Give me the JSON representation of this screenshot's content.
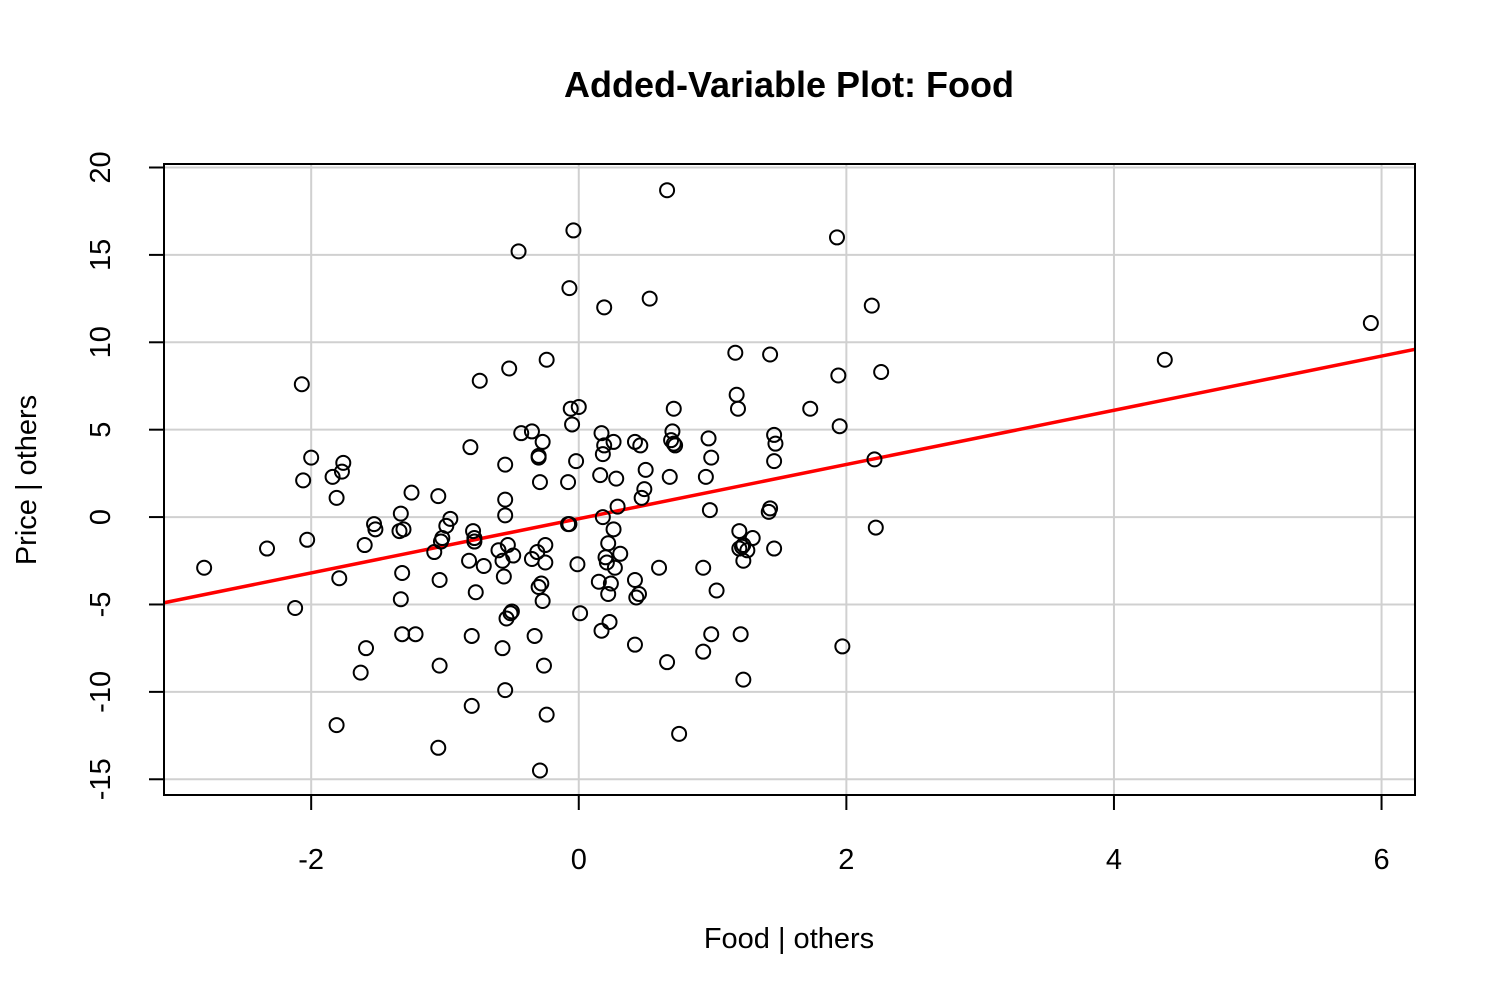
{
  "chart_data": {
    "type": "scatter",
    "title": "Added-Variable Plot: Food",
    "xlabel": "Food | others",
    "ylabel": "Price  | others",
    "xlim": [
      -3.1,
      6.25
    ],
    "ylim": [
      -15.9,
      20.2
    ],
    "xticks": [
      -2,
      0,
      2,
      4,
      6
    ],
    "yticks": [
      -15,
      -10,
      -5,
      0,
      5,
      10,
      15,
      20
    ],
    "grid": true,
    "colors": {
      "points": "#000000",
      "fit_line": "#ff0000",
      "grid": "#d0d0d0"
    },
    "fit_line": {
      "x": [
        -3.1,
        6.25
      ],
      "y": [
        -4.9,
        9.6
      ]
    },
    "points": [
      {
        "x": -2.8,
        "y": -2.9
      },
      {
        "x": -2.33,
        "y": -1.8
      },
      {
        "x": -2.12,
        "y": -5.2
      },
      {
        "x": -2.07,
        "y": 7.6
      },
      {
        "x": -2.06,
        "y": 2.1
      },
      {
        "x": -2.03,
        "y": -1.3
      },
      {
        "x": -2.0,
        "y": 3.4
      },
      {
        "x": -1.84,
        "y": 2.3
      },
      {
        "x": -1.81,
        "y": 1.1
      },
      {
        "x": -1.79,
        "y": -3.5
      },
      {
        "x": -1.81,
        "y": -11.9
      },
      {
        "x": -1.77,
        "y": 2.6
      },
      {
        "x": -1.76,
        "y": 3.1
      },
      {
        "x": -1.63,
        "y": -8.9
      },
      {
        "x": -1.6,
        "y": -1.6
      },
      {
        "x": -1.59,
        "y": -7.5
      },
      {
        "x": -1.53,
        "y": -0.4
      },
      {
        "x": -1.52,
        "y": -0.7
      },
      {
        "x": -1.33,
        "y": 0.2
      },
      {
        "x": -1.33,
        "y": -4.7
      },
      {
        "x": -1.32,
        "y": -3.2
      },
      {
        "x": -1.32,
        "y": -6.7
      },
      {
        "x": -1.31,
        "y": -0.7
      },
      {
        "x": -1.34,
        "y": -0.8
      },
      {
        "x": -1.25,
        "y": 1.4
      },
      {
        "x": -1.22,
        "y": -6.7
      },
      {
        "x": -1.08,
        "y": -2.0
      },
      {
        "x": -1.05,
        "y": 1.2
      },
      {
        "x": -1.04,
        "y": -3.6
      },
      {
        "x": -1.04,
        "y": -8.5
      },
      {
        "x": -1.05,
        "y": -13.2
      },
      {
        "x": -1.03,
        "y": -1.4
      },
      {
        "x": -1.02,
        "y": -1.2
      },
      {
        "x": -0.99,
        "y": -0.5
      },
      {
        "x": -0.96,
        "y": -0.1
      },
      {
        "x": -0.82,
        "y": -2.5
      },
      {
        "x": -0.81,
        "y": 4.0
      },
      {
        "x": -0.8,
        "y": -10.8
      },
      {
        "x": -0.8,
        "y": -6.8
      },
      {
        "x": -0.79,
        "y": -0.8
      },
      {
        "x": -0.78,
        "y": -1.2
      },
      {
        "x": -0.78,
        "y": -1.4
      },
      {
        "x": -0.77,
        "y": -4.3
      },
      {
        "x": -0.74,
        "y": 7.8
      },
      {
        "x": -0.71,
        "y": -2.8
      },
      {
        "x": -0.6,
        "y": -1.9
      },
      {
        "x": -0.57,
        "y": -7.5
      },
      {
        "x": -0.56,
        "y": -3.4
      },
      {
        "x": -0.57,
        "y": -2.5
      },
      {
        "x": -0.55,
        "y": 3.0
      },
      {
        "x": -0.55,
        "y": 1.0
      },
      {
        "x": -0.55,
        "y": 0.1
      },
      {
        "x": -0.55,
        "y": -9.9
      },
      {
        "x": -0.53,
        "y": -1.6
      },
      {
        "x": -0.54,
        "y": -5.8
      },
      {
        "x": -0.52,
        "y": 8.5
      },
      {
        "x": -0.51,
        "y": -5.5
      },
      {
        "x": -0.5,
        "y": -5.4
      },
      {
        "x": -0.49,
        "y": -2.2
      },
      {
        "x": -0.45,
        "y": 15.2
      },
      {
        "x": -0.43,
        "y": 4.8
      },
      {
        "x": -0.35,
        "y": 4.9
      },
      {
        "x": -0.35,
        "y": -2.4
      },
      {
        "x": -0.33,
        "y": -6.8
      },
      {
        "x": -0.31,
        "y": -2.0
      },
      {
        "x": -0.29,
        "y": -14.5
      },
      {
        "x": -0.3,
        "y": 3.5
      },
      {
        "x": -0.3,
        "y": 3.4
      },
      {
        "x": -0.3,
        "y": -4.0
      },
      {
        "x": -0.29,
        "y": 2.0
      },
      {
        "x": -0.28,
        "y": -3.8
      },
      {
        "x": -0.27,
        "y": 4.3
      },
      {
        "x": -0.27,
        "y": -4.8
      },
      {
        "x": -0.26,
        "y": -8.5
      },
      {
        "x": -0.25,
        "y": -1.6
      },
      {
        "x": -0.25,
        "y": -2.6
      },
      {
        "x": -0.24,
        "y": 9.0
      },
      {
        "x": -0.24,
        "y": -11.3
      },
      {
        "x": -0.08,
        "y": 2.0
      },
      {
        "x": -0.08,
        "y": -0.4
      },
      {
        "x": -0.07,
        "y": -0.4
      },
      {
        "x": -0.07,
        "y": 13.1
      },
      {
        "x": -0.06,
        "y": 6.2
      },
      {
        "x": -0.05,
        "y": 5.3
      },
      {
        "x": -0.04,
        "y": 16.4
      },
      {
        "x": -0.02,
        "y": 3.2
      },
      {
        "x": -0.01,
        "y": -2.7
      },
      {
        "x": 0.0,
        "y": 6.3
      },
      {
        "x": 0.01,
        "y": -5.5
      },
      {
        "x": 0.15,
        "y": -3.7
      },
      {
        "x": 0.16,
        "y": 2.4
      },
      {
        "x": 0.17,
        "y": 4.8
      },
      {
        "x": 0.17,
        "y": -6.5
      },
      {
        "x": 0.18,
        "y": 3.6
      },
      {
        "x": 0.18,
        "y": 0.0
      },
      {
        "x": 0.19,
        "y": 4.1
      },
      {
        "x": 0.19,
        "y": 12.0
      },
      {
        "x": 0.2,
        "y": -2.3
      },
      {
        "x": 0.21,
        "y": -2.6
      },
      {
        "x": 0.22,
        "y": -1.5
      },
      {
        "x": 0.22,
        "y": -4.4
      },
      {
        "x": 0.23,
        "y": -6.0
      },
      {
        "x": 0.24,
        "y": -3.8
      },
      {
        "x": 0.26,
        "y": 4.3
      },
      {
        "x": 0.26,
        "y": -0.7
      },
      {
        "x": 0.27,
        "y": -2.9
      },
      {
        "x": 0.28,
        "y": 2.2
      },
      {
        "x": 0.29,
        "y": 0.6
      },
      {
        "x": 0.31,
        "y": -2.1
      },
      {
        "x": 0.42,
        "y": 4.3
      },
      {
        "x": 0.42,
        "y": -3.6
      },
      {
        "x": 0.42,
        "y": -7.3
      },
      {
        "x": 0.43,
        "y": -4.6
      },
      {
        "x": 0.45,
        "y": -4.4
      },
      {
        "x": 0.46,
        "y": 4.1
      },
      {
        "x": 0.47,
        "y": 1.1
      },
      {
        "x": 0.49,
        "y": 1.6
      },
      {
        "x": 0.5,
        "y": 2.7
      },
      {
        "x": 0.53,
        "y": 12.5
      },
      {
        "x": 0.6,
        "y": -2.9
      },
      {
        "x": 0.66,
        "y": 18.7
      },
      {
        "x": 0.66,
        "y": -8.3
      },
      {
        "x": 0.68,
        "y": 2.3
      },
      {
        "x": 0.69,
        "y": 4.4
      },
      {
        "x": 0.7,
        "y": 4.9
      },
      {
        "x": 0.71,
        "y": 4.2
      },
      {
        "x": 0.72,
        "y": 4.1
      },
      {
        "x": 0.71,
        "y": 6.2
      },
      {
        "x": 0.75,
        "y": -12.4
      },
      {
        "x": 0.93,
        "y": -2.9
      },
      {
        "x": 0.93,
        "y": -7.7
      },
      {
        "x": 0.95,
        "y": 2.3
      },
      {
        "x": 0.97,
        "y": 4.5
      },
      {
        "x": 0.98,
        "y": 0.4
      },
      {
        "x": 0.99,
        "y": 3.4
      },
      {
        "x": 0.99,
        "y": -6.7
      },
      {
        "x": 1.03,
        "y": -4.2
      },
      {
        "x": 1.17,
        "y": 9.4
      },
      {
        "x": 1.18,
        "y": 7.0
      },
      {
        "x": 1.19,
        "y": 6.2
      },
      {
        "x": 1.2,
        "y": -0.8
      },
      {
        "x": 1.2,
        "y": -1.8
      },
      {
        "x": 1.21,
        "y": -6.7
      },
      {
        "x": 1.22,
        "y": -1.7
      },
      {
        "x": 1.23,
        "y": -1.6
      },
      {
        "x": 1.23,
        "y": -2.5
      },
      {
        "x": 1.23,
        "y": -9.3
      },
      {
        "x": 1.26,
        "y": -1.9
      },
      {
        "x": 1.3,
        "y": -1.2
      },
      {
        "x": 1.42,
        "y": 0.3
      },
      {
        "x": 1.43,
        "y": 0.5
      },
      {
        "x": 1.43,
        "y": 9.3
      },
      {
        "x": 1.46,
        "y": 4.7
      },
      {
        "x": 1.46,
        "y": 3.2
      },
      {
        "x": 1.47,
        "y": 4.2
      },
      {
        "x": 1.46,
        "y": -1.8
      },
      {
        "x": 1.73,
        "y": 6.2
      },
      {
        "x": 1.93,
        "y": 16.0
      },
      {
        "x": 1.94,
        "y": 8.1
      },
      {
        "x": 1.95,
        "y": 5.2
      },
      {
        "x": 1.97,
        "y": -7.4
      },
      {
        "x": 2.19,
        "y": 12.1
      },
      {
        "x": 2.21,
        "y": 3.3
      },
      {
        "x": 2.22,
        "y": -0.6
      },
      {
        "x": 2.26,
        "y": 8.3
      },
      {
        "x": 4.38,
        "y": 9.0
      },
      {
        "x": 5.92,
        "y": 11.1
      }
    ]
  }
}
